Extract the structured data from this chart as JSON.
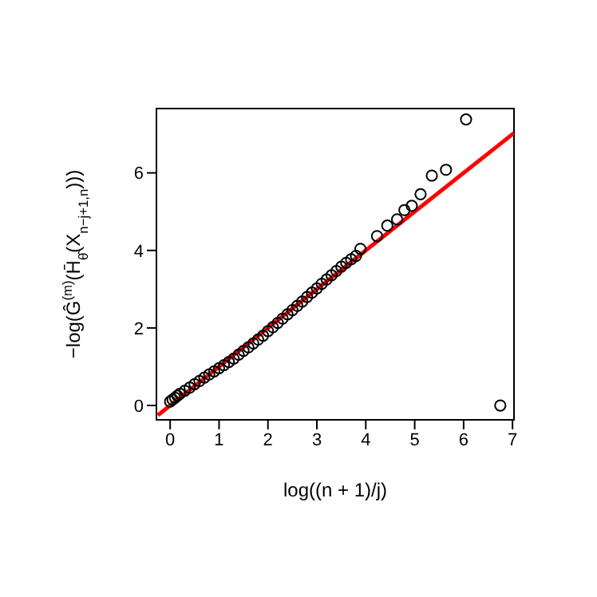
{
  "chart_data": {
    "type": "scatter",
    "xlabel": "log((n + 1)/j)",
    "ylabel": "−log(Ĝ$^{(m)}$(H̄$_{θ̂}$(X$_{n−j+1,n}$)))",
    "xlim": [
      -0.28,
      7.03
    ],
    "ylim": [
      -0.37,
      7.66
    ],
    "xticks": [
      0,
      1,
      2,
      3,
      4,
      5,
      6,
      7
    ],
    "yticks": [
      0,
      2,
      4,
      6
    ],
    "grid": false,
    "series": [
      {
        "marker": "circle",
        "color": "#000000",
        "x": [
          0.0,
          0.05,
          0.1,
          0.15,
          0.2,
          0.3,
          0.4,
          0.5,
          0.6,
          0.7,
          0.8,
          0.9,
          1.0,
          1.1,
          1.2,
          1.3,
          1.4,
          1.5,
          1.6,
          1.7,
          1.8,
          1.9,
          2.0,
          2.1,
          2.2,
          2.3,
          2.4,
          2.5,
          2.6,
          2.7,
          2.8,
          2.9,
          3.0,
          3.1,
          3.2,
          3.3,
          3.4,
          3.5,
          3.6,
          3.7,
          3.8,
          3.89,
          4.23,
          4.44,
          4.64,
          4.79,
          4.94,
          5.12,
          5.35,
          5.64,
          6.05,
          6.75
        ],
        "values": [
          0.1,
          0.15,
          0.2,
          0.25,
          0.3,
          0.38,
          0.46,
          0.55,
          0.63,
          0.72,
          0.8,
          0.88,
          0.96,
          1.04,
          1.12,
          1.21,
          1.31,
          1.41,
          1.5,
          1.6,
          1.7,
          1.8,
          1.92,
          2.02,
          2.13,
          2.24,
          2.35,
          2.46,
          2.57,
          2.68,
          2.8,
          2.91,
          3.02,
          3.14,
          3.25,
          3.36,
          3.47,
          3.58,
          3.68,
          3.77,
          3.86,
          4.04,
          4.37,
          4.64,
          4.8,
          5.04,
          5.15,
          5.45,
          5.93,
          6.08,
          7.38,
          0
        ]
      },
      {
        "type": "line",
        "color": "#ff0000",
        "x": [
          -0.25,
          7.03
        ],
        "values": [
          -0.25,
          7.03
        ]
      }
    ]
  }
}
